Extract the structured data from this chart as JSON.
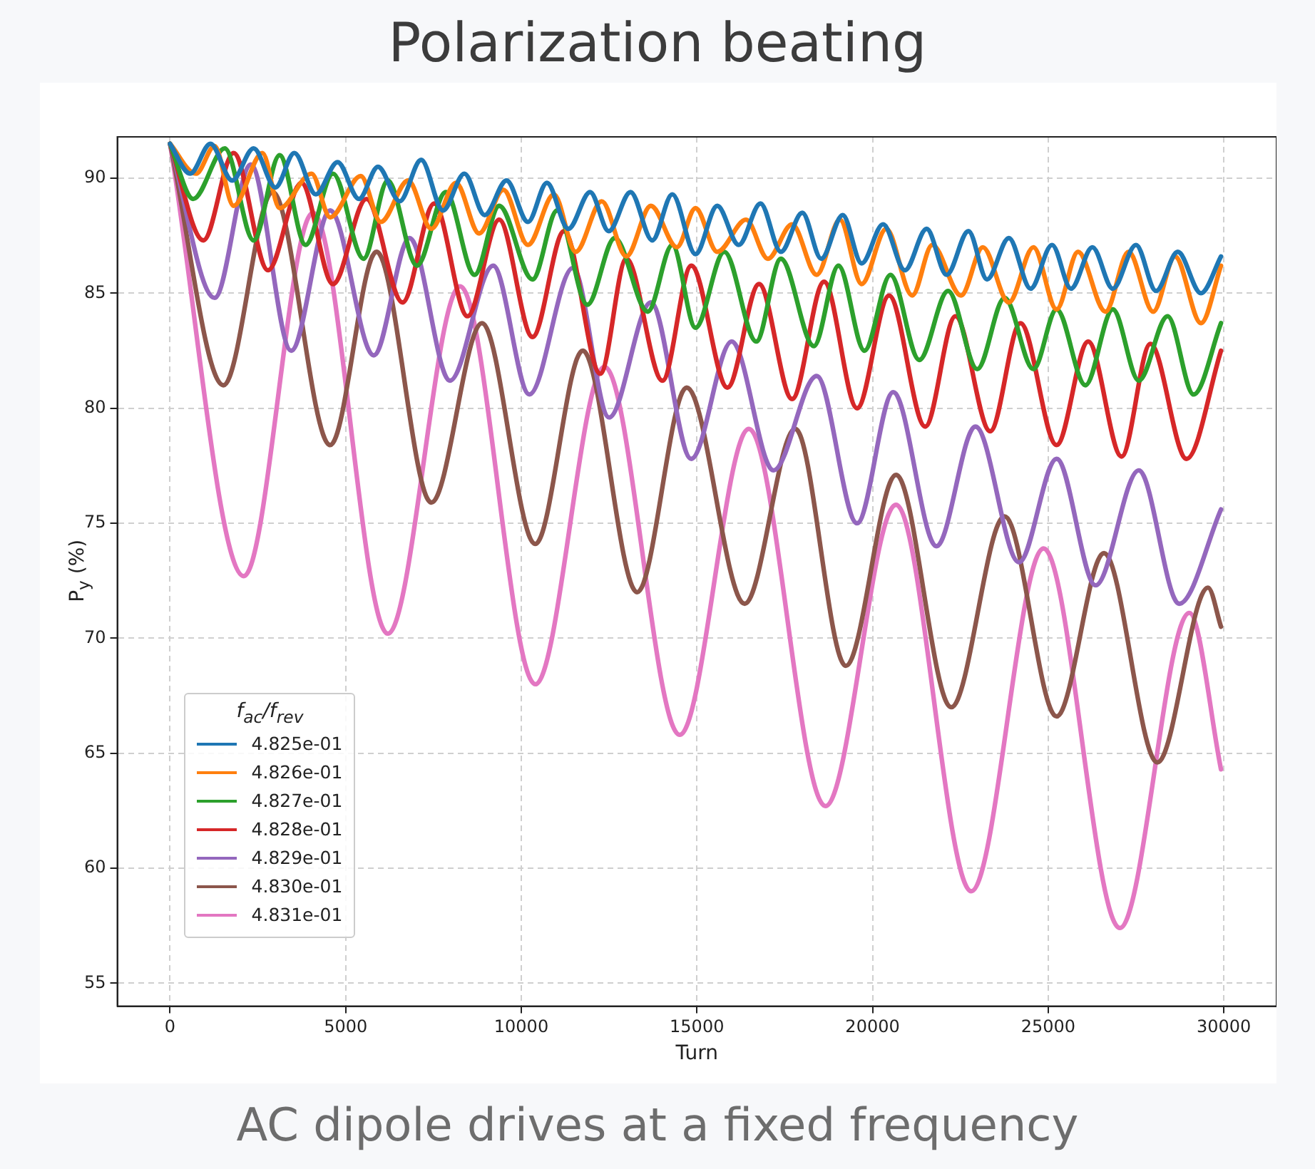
{
  "chart_data": {
    "type": "line",
    "title": "Polarization beating",
    "annotations": [
      "AC dipole drives at a fixed frequency"
    ],
    "xlabel": "Turn",
    "ylabel": "P$_{y}$ (%)",
    "legend_title": "f$_{ac}$/f$_{rev}$",
    "legend": "bottom left",
    "grid": true,
    "marker": "none",
    "line_style": "solid",
    "xlim": [
      -1500,
      31500
    ],
    "xticks": [
      0,
      5000,
      10000,
      15000,
      20000,
      25000,
      30000
    ],
    "ylim": [
      54,
      91.8
    ],
    "yticks": [
      55,
      60,
      65,
      70,
      75,
      80,
      85,
      90
    ],
    "series": [
      {
        "name": "4.825e-01",
        "color": "#1f77b4",
        "x": [
          0,
          575,
          1150,
          1770,
          2380,
          3000,
          3540,
          4150,
          4770,
          5380,
          5920,
          6540,
          7150,
          7770,
          8380,
          8960,
          9580,
          10190,
          10730,
          11340,
          11960,
          12490,
          13110,
          13730,
          14300,
          14960,
          15580,
          16190,
          16810,
          17390,
          18000,
          18540,
          19150,
          19690,
          20300,
          20920,
          21540,
          22110,
          22730,
          23260,
          23880,
          24500,
          25110,
          25650,
          26260,
          26840,
          27500,
          28070,
          28690,
          29350,
          29920
        ],
        "values": [
          91.5,
          90.2,
          91.5,
          89.9,
          91.3,
          89.6,
          91.1,
          89.3,
          90.7,
          89.1,
          90.5,
          89.0,
          90.8,
          88.6,
          90.2,
          88.4,
          89.9,
          88.1,
          89.8,
          87.8,
          89.4,
          87.7,
          89.4,
          87.3,
          89.3,
          86.7,
          88.8,
          87.1,
          88.9,
          86.8,
          88.5,
          86.5,
          88.4,
          86.3,
          88.0,
          86.0,
          87.8,
          85.8,
          87.7,
          85.6,
          87.4,
          85.2,
          87.1,
          85.2,
          87.0,
          85.2,
          87.1,
          85.1,
          86.8,
          85.0,
          86.6
        ]
      },
      {
        "name": "4.826e-01",
        "color": "#ff7f0e",
        "x": [
          0,
          740,
          1270,
          1810,
          2630,
          3120,
          4030,
          4560,
          5430,
          6000,
          6780,
          7440,
          8140,
          8800,
          9490,
          10190,
          10930,
          11550,
          12290,
          12990,
          13690,
          14430,
          14960,
          15580,
          16400,
          17020,
          17710,
          18410,
          19070,
          19690,
          20390,
          21130,
          21700,
          22520,
          23140,
          23880,
          24580,
          25240,
          25850,
          26630,
          27290,
          27990,
          28610,
          29350,
          29920
        ],
        "values": [
          91.5,
          90.2,
          91.4,
          88.8,
          91.1,
          88.7,
          90.2,
          88.3,
          90.1,
          88.1,
          89.9,
          87.8,
          89.8,
          87.6,
          89.5,
          87.1,
          89.3,
          86.8,
          89.0,
          86.6,
          88.8,
          87.0,
          88.7,
          86.8,
          88.2,
          86.5,
          88.0,
          85.8,
          88.2,
          85.4,
          87.8,
          84.9,
          87.1,
          84.9,
          87.0,
          84.6,
          87.0,
          84.3,
          86.8,
          84.2,
          86.8,
          84.2,
          86.6,
          83.7,
          86.2
        ]
      },
      {
        "name": "4.827e-01",
        "color": "#2ca02c",
        "x": [
          0,
          660,
          1560,
          2380,
          3120,
          3860,
          4640,
          5510,
          6200,
          7030,
          7850,
          8670,
          9370,
          10320,
          11020,
          11880,
          12660,
          13600,
          14300,
          14960,
          15780,
          16690,
          17390,
          18330,
          19030,
          19770,
          20510,
          21330,
          22150,
          22980,
          23760,
          24580,
          25240,
          26060,
          26840,
          27580,
          28400,
          29140,
          29920
        ],
        "values": [
          91.5,
          89.1,
          91.3,
          87.3,
          91.0,
          87.1,
          90.2,
          86.5,
          89.9,
          86.2,
          89.4,
          85.8,
          88.8,
          85.6,
          88.6,
          84.5,
          87.4,
          84.2,
          87.1,
          83.5,
          86.8,
          82.9,
          86.5,
          82.7,
          86.2,
          82.5,
          85.8,
          82.1,
          85.1,
          81.7,
          84.8,
          81.7,
          84.3,
          81.0,
          84.3,
          81.2,
          84.0,
          80.6,
          83.7
        ]
      },
      {
        "name": "4.828e-01",
        "color": "#d62728",
        "x": [
          0,
          950,
          1810,
          2790,
          3740,
          4640,
          5590,
          6620,
          7520,
          8470,
          9370,
          10320,
          11220,
          12250,
          12990,
          14020,
          14840,
          15870,
          16770,
          17710,
          18620,
          19560,
          20470,
          21500,
          22360,
          23350,
          24210,
          25240,
          26140,
          27090,
          27910,
          28940,
          29920
        ],
        "values": [
          91.5,
          87.3,
          91.1,
          86.0,
          89.8,
          85.4,
          89.1,
          84.6,
          88.9,
          84.0,
          88.2,
          83.1,
          87.7,
          81.5,
          86.5,
          81.2,
          86.2,
          80.9,
          85.4,
          80.4,
          85.5,
          80.0,
          84.9,
          79.2,
          84.0,
          79.0,
          83.7,
          78.4,
          82.9,
          77.9,
          82.8,
          77.8,
          82.5
        ]
      },
      {
        "name": "4.829e-01",
        "color": "#9467bd",
        "x": [
          0,
          1270,
          2300,
          3450,
          4560,
          5800,
          6820,
          7970,
          9200,
          10230,
          11470,
          12500,
          13690,
          14840,
          15990,
          17180,
          18410,
          19560,
          20590,
          21820,
          22930,
          24170,
          25240,
          26350,
          27580,
          28730,
          29920
        ],
        "values": [
          91.5,
          84.8,
          90.6,
          82.5,
          88.6,
          82.3,
          87.4,
          81.2,
          86.2,
          80.6,
          86.1,
          79.6,
          84.6,
          77.8,
          82.9,
          77.3,
          81.4,
          75.0,
          80.7,
          74.0,
          79.2,
          73.3,
          77.8,
          72.3,
          77.3,
          71.5,
          75.6
        ]
      },
      {
        "name": "4.830e-01",
        "color": "#8c564b",
        "x": [
          0,
          1520,
          2920,
          4560,
          5880,
          7440,
          8880,
          10400,
          11750,
          13300,
          14710,
          16360,
          17800,
          19240,
          20670,
          22240,
          23760,
          25240,
          26590,
          28110,
          29550,
          29920
        ],
        "values": [
          91.5,
          81.0,
          89.4,
          78.4,
          86.8,
          75.9,
          83.7,
          74.1,
          82.5,
          72.0,
          80.9,
          71.5,
          79.1,
          68.8,
          77.1,
          67.0,
          75.3,
          66.6,
          73.7,
          64.6,
          72.2,
          70.5
        ]
      },
      {
        "name": "4.831e-01",
        "color": "#e377c2",
        "x": [
          0,
          2100,
          4070,
          6200,
          8260,
          10400,
          12370,
          14510,
          16480,
          18660,
          20670,
          22810,
          24870,
          27040,
          29020,
          29920
        ],
        "values": [
          91.5,
          72.7,
          88.5,
          70.2,
          85.3,
          68.0,
          81.8,
          65.8,
          79.1,
          62.7,
          75.8,
          59.0,
          73.9,
          57.4,
          71.1,
          64.3
        ]
      }
    ]
  }
}
